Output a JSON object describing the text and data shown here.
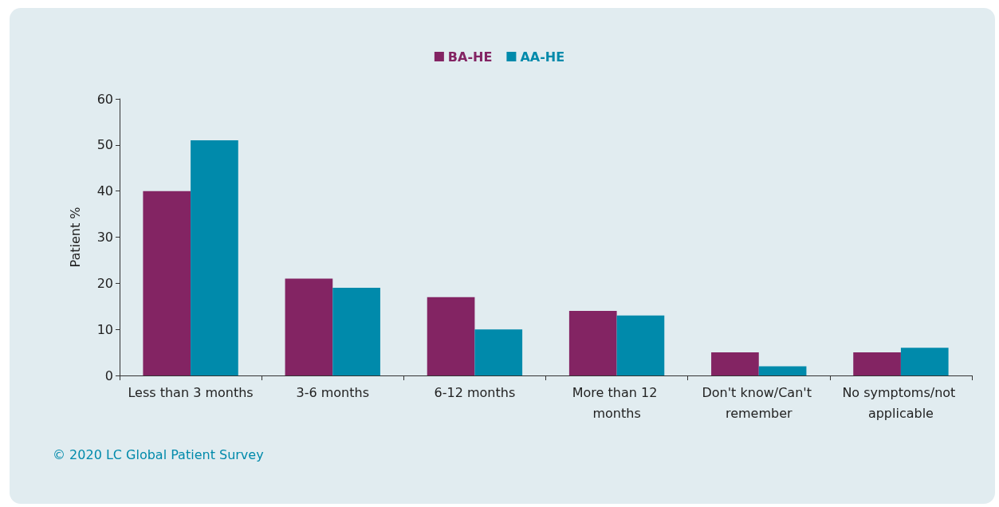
{
  "chart_data": {
    "type": "bar",
    "ylabel": "Patient %",
    "categories": [
      "Less than 3 months",
      "3-6 months",
      "6-12 months",
      "More than 12 months",
      "Don't know/Can't remember",
      "No symptoms/not applicable"
    ],
    "series": [
      {
        "name": "BA-HE",
        "color": "#832463",
        "values": [
          40,
          21,
          17,
          14,
          5,
          5
        ]
      },
      {
        "name": "AA-HE",
        "color": "#008aab",
        "values": [
          51,
          19,
          10,
          13,
          2,
          6
        ]
      }
    ],
    "ylim": [
      0,
      60
    ],
    "yticks": [
      0,
      10,
      20,
      30,
      40,
      50,
      60
    ],
    "grid": false,
    "legend": "top",
    "annotations": [
      "© 2020 LC Global Patient Survey"
    ]
  }
}
